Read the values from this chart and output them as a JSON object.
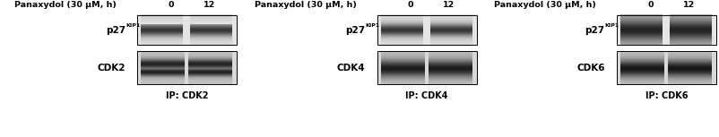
{
  "panels": [
    {
      "header": "Panaxydol (30 μM, h)",
      "time_points": [
        "0",
        "12"
      ],
      "cdk_label": "CDK2",
      "ip_label": "IP: CDK2"
    },
    {
      "header": "Panaxydol (30 μM, h)",
      "time_points": [
        "0",
        "12"
      ],
      "cdk_label": "CDK4",
      "ip_label": "IP: CDK4"
    },
    {
      "header": "Panaxydol (30 μM, h)",
      "time_points": [
        "0",
        "12"
      ],
      "cdk_label": "CDK6",
      "ip_label": "IP: CDK6"
    }
  ],
  "bg_color": "#ffffff",
  "text_color": "#000000"
}
